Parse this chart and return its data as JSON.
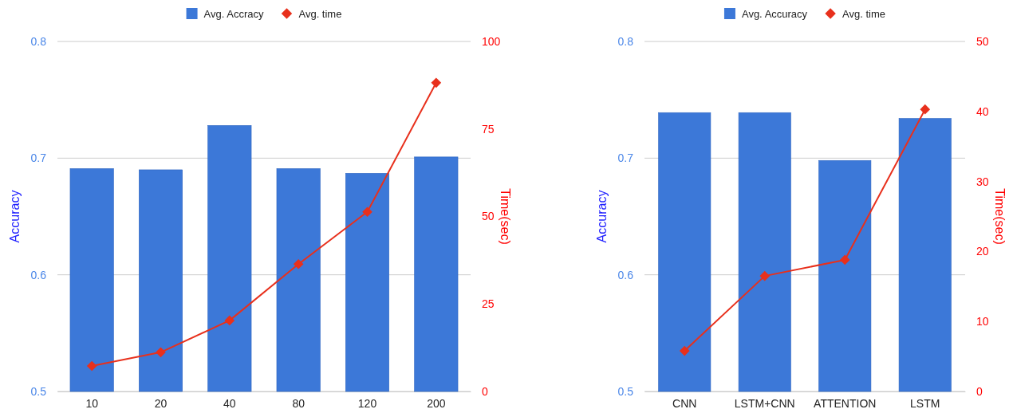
{
  "chart_data": [
    {
      "type": "bar",
      "categories": [
        "10",
        "20",
        "40",
        "80",
        "120",
        "200"
      ],
      "ylabel": "Accuracy",
      "y2label": "Time(sec)",
      "ylim": [
        0.5,
        0.8
      ],
      "yticks": [
        0.5,
        0.6,
        0.7,
        0.8
      ],
      "y2lim": [
        0,
        100
      ],
      "y2ticks": [
        0,
        25,
        50,
        75,
        100
      ],
      "grid": "y",
      "legend": "top",
      "marker": "diamond",
      "series": [
        {
          "name": "Avg. Accracy",
          "color": "#3c78d8",
          "values": [
            0.691,
            0.69,
            0.728,
            0.691,
            0.687,
            0.701
          ]
        },
        {
          "name": "Avg. time",
          "type": "line",
          "axis": "y2",
          "color": "#e8301c",
          "values": [
            7.3,
            11.2,
            20.3,
            36.4,
            51.3,
            88.2
          ]
        }
      ]
    },
    {
      "type": "bar",
      "categories": [
        "CNN",
        "LSTM+CNN",
        "ATTENTION",
        "LSTM"
      ],
      "ylabel": "Accuracy",
      "y2label": "Time(sec)",
      "ylim": [
        0.5,
        0.8
      ],
      "yticks": [
        0.5,
        0.6,
        0.7,
        0.8
      ],
      "y2lim": [
        0,
        50
      ],
      "y2ticks": [
        0,
        10,
        20,
        30,
        40,
        50
      ],
      "grid": "y",
      "legend": "top",
      "marker": "diamond",
      "series": [
        {
          "name": "Avg. Accuracy",
          "color": "#3c78d8",
          "values": [
            0.739,
            0.739,
            0.698,
            0.734
          ]
        },
        {
          "name": "Avg. time",
          "type": "line",
          "axis": "y2",
          "color": "#e8301c",
          "values": [
            5.8,
            16.5,
            18.8,
            40.3
          ]
        }
      ]
    }
  ]
}
